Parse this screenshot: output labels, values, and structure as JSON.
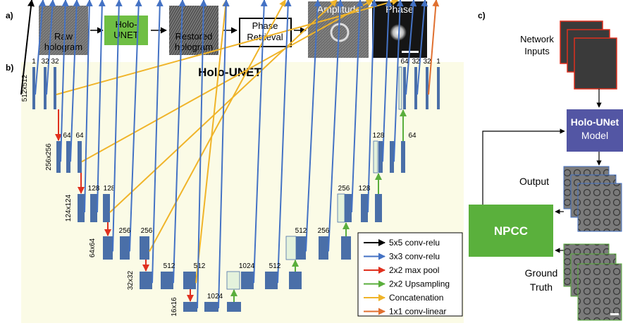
{
  "panel_a": {
    "label": "a)",
    "raw_hologram": [
      "Raw",
      "hologram"
    ],
    "network": [
      "Holo-",
      "UNET"
    ],
    "restored_hologram": [
      "Restored",
      "hologram"
    ],
    "phase_retrieval": [
      "Phase",
      "Retrieval"
    ],
    "amplitude": "Amplitude",
    "phase": "Phase"
  },
  "panel_b": {
    "label": "b)",
    "title": "Holo-UNET",
    "levels": [
      {
        "size": "512x512",
        "encoder_channels": [
          1,
          32,
          32
        ],
        "decoder_channels": [
          64,
          32,
          32,
          1
        ]
      },
      {
        "size": "256x256",
        "encoder_channels": [
          64,
          64
        ],
        "decoder_channels": [
          128,
          64
        ]
      },
      {
        "size": "124x124",
        "encoder_channels": [
          128,
          128
        ],
        "decoder_channels": [
          256,
          128
        ]
      },
      {
        "size": "64x64",
        "encoder_channels": [
          256,
          256
        ],
        "decoder_channels": [
          512,
          256
        ]
      },
      {
        "size": "32x32",
        "encoder_channels": [
          512,
          512
        ],
        "decoder_channels": [
          1024,
          512
        ]
      },
      {
        "size": "16x16",
        "encoder_channels": [
          1024
        ],
        "decoder_channels": []
      }
    ],
    "legend": [
      {
        "label": "5x5 conv-relu",
        "color": "#000000"
      },
      {
        "label": "3x3 conv-relu",
        "color": "#4472c4"
      },
      {
        "label": "2x2 max pool",
        "color": "#e0301e"
      },
      {
        "label": "2x2 Upsampling",
        "color": "#5aae3c"
      },
      {
        "label": "Concatenation",
        "color": "#f0b429"
      },
      {
        "label": "1x1 conv-linear",
        "color": "#e07030"
      }
    ]
  },
  "panel_c": {
    "label": "c)",
    "network_inputs": [
      "Network",
      "Inputs"
    ],
    "model": [
      "Holo-UNet",
      "Model"
    ],
    "output": "Output",
    "loss": "NPCC",
    "ground_truth": [
      "Ground",
      "Truth"
    ]
  }
}
